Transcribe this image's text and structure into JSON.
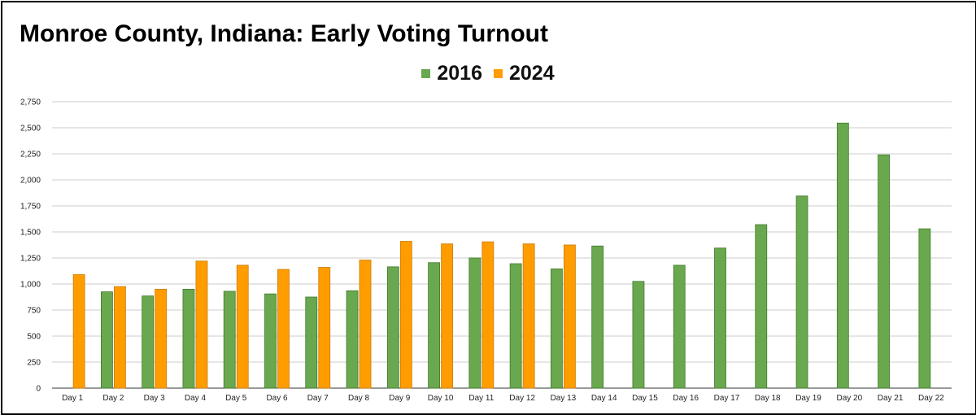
{
  "chart_data": {
    "type": "bar",
    "title": "Monroe County, Indiana: Early Voting Turnout",
    "xlabel": "",
    "ylabel": "",
    "ylim": [
      0,
      2750
    ],
    "yticks": [
      0,
      250,
      500,
      750,
      1000,
      1250,
      1500,
      1750,
      2000,
      2250,
      2500,
      2750
    ],
    "ytick_labels": [
      "0",
      "250",
      "500",
      "750",
      "1,000",
      "1,250",
      "1,500",
      "1,750",
      "2,000",
      "2,250",
      "2,500",
      "2,750"
    ],
    "grid": true,
    "legend_position": "top-center",
    "categories": [
      "Day 1",
      "Day 2",
      "Day 3",
      "Day 4",
      "Day 5",
      "Day 6",
      "Day 7",
      "Day 8",
      "Day 9",
      "Day 10",
      "Day 11",
      "Day 12",
      "Day 13",
      "Day 14",
      "Day 15",
      "Day 16",
      "Day 17",
      "Day 18",
      "Day 19",
      "Day 20",
      "Day 21",
      "Day 22"
    ],
    "series": [
      {
        "name": "2016",
        "color": "#6aa84f",
        "values": [
          null,
          925,
          885,
          950,
          930,
          905,
          875,
          935,
          1165,
          1205,
          1250,
          1195,
          1145,
          1365,
          1025,
          1180,
          1345,
          1570,
          1845,
          2545,
          2240,
          1530
        ]
      },
      {
        "name": "2024",
        "color": "#ff9d00",
        "values": [
          1090,
          975,
          950,
          1220,
          1180,
          1140,
          1160,
          1230,
          1410,
          1385,
          1405,
          1385,
          1375,
          null,
          null,
          null,
          null,
          null,
          null,
          null,
          null,
          null
        ]
      }
    ]
  }
}
